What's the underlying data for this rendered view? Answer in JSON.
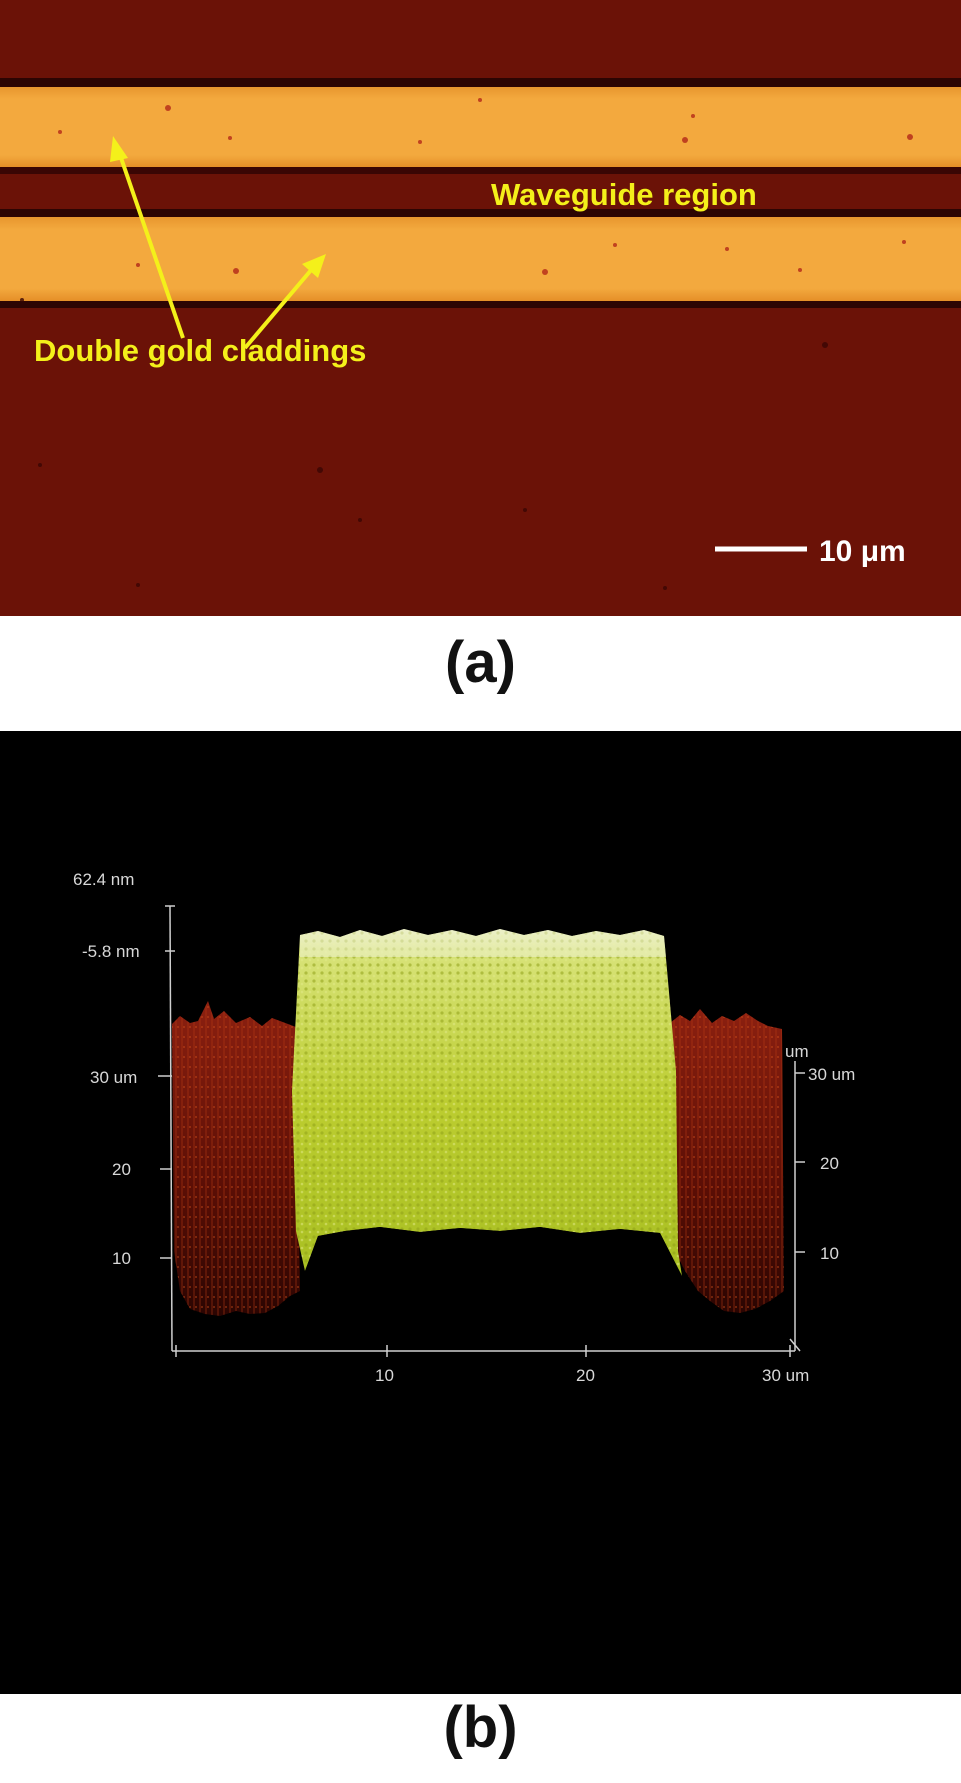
{
  "panel_a": {
    "annotation_waveguide": "Waveguide region",
    "annotation_claddings": "Double gold claddings",
    "scale_bar_label": "10 μm",
    "caption": "(a)"
  },
  "panel_b": {
    "z_axis_top": "62.4 nm",
    "z_axis_bottom": "-5.8 nm",
    "left_axis_ticks": [
      "30 um",
      "20",
      "10"
    ],
    "right_axis_unit": "um",
    "right_axis_ticks": [
      "30 um",
      "20",
      "10"
    ],
    "bottom_axis_ticks": [
      "10",
      "20",
      "30 um"
    ],
    "caption": "(b)"
  },
  "colors": {
    "substrate": "#6b1207",
    "gold": "#f0a43a",
    "annotation": "#f4f01a",
    "afm_high": "#c9d83a",
    "afm_low": "#7a1408"
  }
}
